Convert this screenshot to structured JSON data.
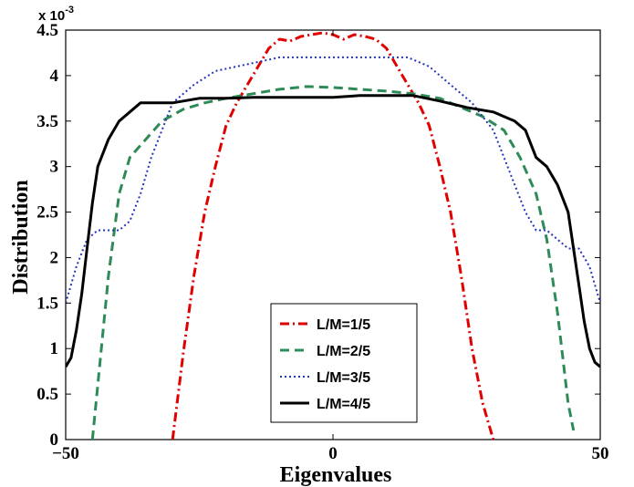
{
  "chart_data": {
    "type": "line",
    "title": "",
    "xlabel": "Eigenvalues",
    "ylabel": "Distribution",
    "xlim": [
      -50,
      50
    ],
    "ylim": [
      0,
      0.0045
    ],
    "y_multiplier_label": "x 10",
    "y_multiplier_exponent": "-3",
    "xticks": [
      -50,
      0,
      50
    ],
    "xtick_labels": [
      "−50",
      "0",
      "50"
    ],
    "yticks": [
      0,
      0.0005,
      0.001,
      0.0015,
      0.002,
      0.0025,
      0.003,
      0.0035,
      0.004,
      0.0045
    ],
    "ytick_labels": [
      "0",
      "0.5",
      "1",
      "1.5",
      "2",
      "2.5",
      "3",
      "3.5",
      "4",
      "4.5"
    ],
    "grid": false,
    "legend_position": "bottom-center",
    "series": [
      {
        "name": "L/M=1/5",
        "color": "#e00000",
        "dash": "dashdot",
        "x": [
          -30,
          -28,
          -26,
          -24,
          -22,
          -20,
          -18,
          -16,
          -14,
          -12,
          -10,
          -8,
          -6,
          -4,
          -2,
          0,
          2,
          4,
          6,
          8,
          10,
          12,
          14,
          16,
          18,
          20,
          22,
          24,
          26,
          28,
          30
        ],
        "y": [
          0.0,
          0.00095,
          0.0018,
          0.0025,
          0.003,
          0.00345,
          0.0037,
          0.0039,
          0.0041,
          0.0043,
          0.0044,
          0.00438,
          0.00443,
          0.00445,
          0.00447,
          0.00445,
          0.0044,
          0.00445,
          0.00443,
          0.0044,
          0.0043,
          0.0041,
          0.0039,
          0.0037,
          0.00345,
          0.003,
          0.0025,
          0.0018,
          0.001,
          0.0004,
          0.0
        ]
      },
      {
        "name": "L/M=2/5",
        "color": "#2e8b57",
        "dash": "dashed",
        "x": [
          -45,
          -44,
          -42,
          -40,
          -38,
          -35,
          -32,
          -28,
          -24,
          -20,
          -15,
          -10,
          -5,
          0,
          5,
          10,
          15,
          20,
          24,
          28,
          32,
          35,
          38,
          40,
          42,
          44,
          45
        ],
        "y": [
          0.0,
          0.0006,
          0.0018,
          0.0027,
          0.0031,
          0.0033,
          0.0035,
          0.00363,
          0.0037,
          0.00375,
          0.0038,
          0.00385,
          0.00388,
          0.00387,
          0.00385,
          0.00383,
          0.0038,
          0.00375,
          0.00365,
          0.00355,
          0.0034,
          0.0031,
          0.0027,
          0.0022,
          0.0014,
          0.0004,
          0.0001
        ]
      },
      {
        "name": "L/M=3/5",
        "color": "#2233bb",
        "dash": "dotted",
        "x": [
          -50,
          -48,
          -46,
          -44,
          -42,
          -40,
          -38,
          -36,
          -34,
          -32,
          -30,
          -26,
          -22,
          -18,
          -14,
          -10,
          -6,
          -2,
          2,
          6,
          10,
          14,
          18,
          22,
          26,
          30,
          32,
          34,
          36,
          38,
          40,
          42,
          44,
          46,
          48,
          50
        ],
        "y": [
          0.0015,
          0.0019,
          0.0022,
          0.0023,
          0.0023,
          0.0023,
          0.0024,
          0.0027,
          0.0031,
          0.0034,
          0.0037,
          0.0039,
          0.00405,
          0.0041,
          0.00415,
          0.0042,
          0.0042,
          0.0042,
          0.0042,
          0.0042,
          0.0042,
          0.0042,
          0.0041,
          0.0039,
          0.0037,
          0.0034,
          0.0031,
          0.0028,
          0.0025,
          0.0023,
          0.0023,
          0.0022,
          0.0021,
          0.0021,
          0.0019,
          0.0015
        ]
      },
      {
        "name": "L/M=4/5",
        "color": "#000000",
        "dash": "solid",
        "x": [
          -50,
          -49,
          -48,
          -47,
          -46,
          -45,
          -44,
          -42,
          -40,
          -38,
          -36,
          -34,
          -30,
          -25,
          -20,
          -15,
          -10,
          -5,
          0,
          5,
          10,
          15,
          20,
          25,
          30,
          34,
          36,
          38,
          40,
          42,
          44,
          45,
          46,
          47,
          48,
          49,
          50
        ],
        "y": [
          0.0008,
          0.0009,
          0.0012,
          0.0016,
          0.0021,
          0.0026,
          0.003,
          0.0033,
          0.0035,
          0.0036,
          0.0037,
          0.0037,
          0.0037,
          0.00375,
          0.00375,
          0.00376,
          0.00376,
          0.00376,
          0.00376,
          0.00378,
          0.00378,
          0.00378,
          0.00372,
          0.00365,
          0.0036,
          0.0035,
          0.0034,
          0.0031,
          0.003,
          0.0028,
          0.0025,
          0.0021,
          0.0017,
          0.0013,
          0.001,
          0.00085,
          0.0008
        ]
      }
    ]
  }
}
